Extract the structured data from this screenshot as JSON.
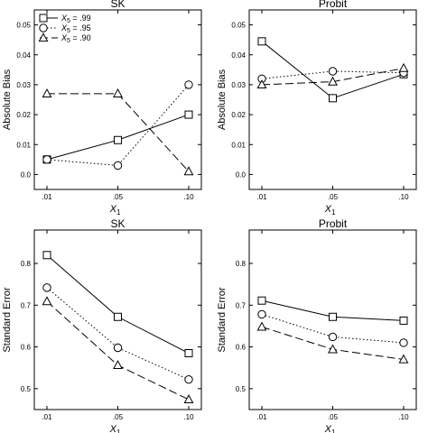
{
  "legend": {
    "entries": [
      {
        "label_main": "X",
        "label_sub": "5",
        "label_value": " = .99",
        "style": "solid",
        "marker": "square"
      },
      {
        "label_main": "X",
        "label_sub": "5",
        "label_value": " = .95",
        "style": "dotted",
        "marker": "circle"
      },
      {
        "label_main": "X",
        "label_sub": "5",
        "label_value": " = .90",
        "style": "dashed",
        "marker": "triangle"
      }
    ]
  },
  "chart_data": [
    {
      "type": "line",
      "title": "SK",
      "xlabel_main": "X",
      "xlabel_sub": "1",
      "ylabel": "Absolute Bias",
      "categories": [
        ".01",
        ".05",
        ".10"
      ],
      "ylim": [
        -0.005,
        0.055
      ],
      "yticks": [
        0,
        0.01,
        0.02,
        0.03,
        0.04,
        0.05
      ],
      "ytick_labels": [
        "0.0",
        "0.01",
        "0.02",
        "0.03",
        "0.04",
        "0.05"
      ],
      "series": [
        {
          "name": "X5 = .99",
          "style": "solid",
          "marker": "square",
          "values": [
            0.005,
            0.0115,
            0.02
          ]
        },
        {
          "name": "X5 = .95",
          "style": "dotted",
          "marker": "circle",
          "values": [
            0.005,
            0.003,
            0.03
          ]
        },
        {
          "name": "X5 = .90",
          "style": "dashed",
          "marker": "triangle",
          "values": [
            0.027,
            0.027,
            0.001
          ]
        }
      ],
      "legend_position": "top-left"
    },
    {
      "type": "line",
      "title": "Probit",
      "xlabel_main": "X",
      "xlabel_sub": "1",
      "ylabel": "Absolute Bias",
      "categories": [
        ".01",
        ".05",
        ".10"
      ],
      "ylim": [
        -0.005,
        0.055
      ],
      "yticks": [
        0,
        0.01,
        0.02,
        0.03,
        0.04,
        0.05
      ],
      "ytick_labels": [
        "0.0",
        "0.01",
        "0.02",
        "0.03",
        "0.04",
        "0.05"
      ],
      "series": [
        {
          "name": "X5 = .99",
          "style": "solid",
          "marker": "square",
          "values": [
            0.0445,
            0.0255,
            0.0335
          ]
        },
        {
          "name": "X5 = .95",
          "style": "dotted",
          "marker": "circle",
          "values": [
            0.032,
            0.0345,
            0.034
          ]
        },
        {
          "name": "X5 = .90",
          "style": "dashed",
          "marker": "triangle",
          "values": [
            0.03,
            0.031,
            0.0355
          ]
        }
      ]
    },
    {
      "type": "line",
      "title": "SK",
      "xlabel_main": "X",
      "xlabel_sub": "1",
      "ylabel": "Standard Error",
      "categories": [
        ".01",
        ".05",
        ".10"
      ],
      "ylim": [
        0.45,
        0.88
      ],
      "yticks": [
        0.5,
        0.6,
        0.7,
        0.8
      ],
      "ytick_labels": [
        "0.5",
        "0.6",
        "0.7",
        "0.8"
      ],
      "series": [
        {
          "name": "X5 = .99",
          "style": "solid",
          "marker": "square",
          "values": [
            0.82,
            0.672,
            0.585
          ]
        },
        {
          "name": "X5 = .95",
          "style": "dotted",
          "marker": "circle",
          "values": [
            0.742,
            0.598,
            0.522
          ]
        },
        {
          "name": "X5 = .90",
          "style": "dashed",
          "marker": "triangle",
          "values": [
            0.709,
            0.556,
            0.474
          ]
        }
      ]
    },
    {
      "type": "line",
      "title": "Probit",
      "xlabel_main": "X",
      "xlabel_sub": "1",
      "ylabel": "Standard Error",
      "categories": [
        ".01",
        ".05",
        ".10"
      ],
      "ylim": [
        0.45,
        0.88
      ],
      "yticks": [
        0.5,
        0.6,
        0.7,
        0.8
      ],
      "ytick_labels": [
        "0.5",
        "0.6",
        "0.7",
        "0.8"
      ],
      "series": [
        {
          "name": "X5 = .99",
          "style": "solid",
          "marker": "square",
          "values": [
            0.711,
            0.672,
            0.663
          ]
        },
        {
          "name": "X5 = .95",
          "style": "dotted",
          "marker": "circle",
          "values": [
            0.678,
            0.624,
            0.61
          ]
        },
        {
          "name": "X5 = .90",
          "style": "dashed",
          "marker": "triangle",
          "values": [
            0.648,
            0.594,
            0.57
          ]
        }
      ]
    }
  ]
}
